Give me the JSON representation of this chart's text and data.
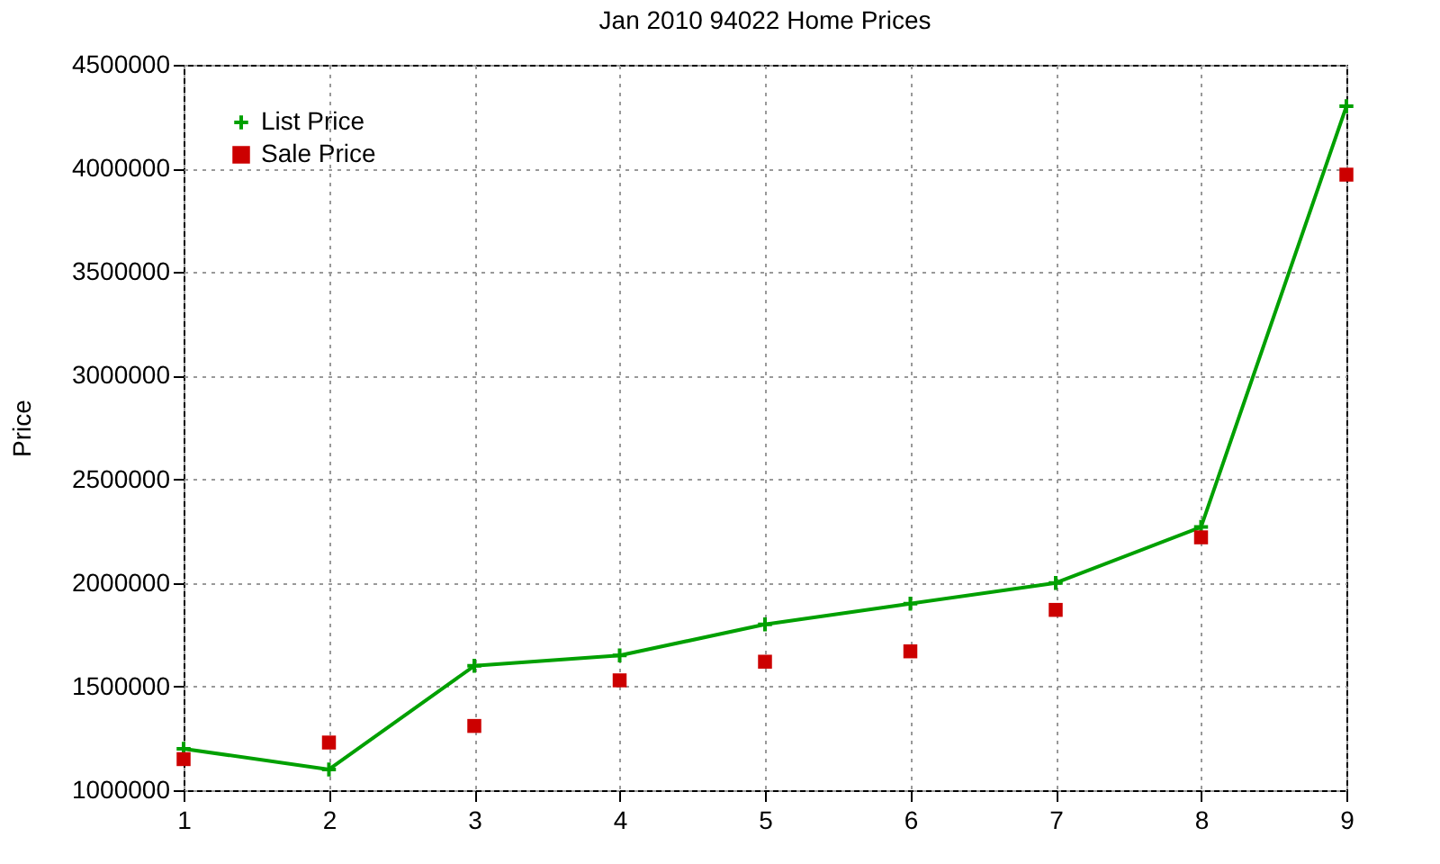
{
  "chart_data": {
    "type": "line",
    "title": "Jan 2010 94022 Home Prices",
    "ylabel": "Price",
    "x": [
      1,
      2,
      3,
      4,
      5,
      6,
      7,
      8,
      9
    ],
    "series": [
      {
        "name": "List Price",
        "color": "#00a000",
        "marker": "cross",
        "values": [
          1200000,
          1100000,
          1600000,
          1650000,
          1800000,
          1900000,
          2000000,
          2270000,
          4300000
        ]
      },
      {
        "name": "Sale Price",
        "color": "#cc0000",
        "type": "scatter",
        "marker": "square",
        "values": [
          1150000,
          1230000,
          1310000,
          1530000,
          1620000,
          1670000,
          1870000,
          2220000,
          3970000
        ]
      }
    ],
    "xlim": [
      1,
      9
    ],
    "xticks": [
      1,
      2,
      3,
      4,
      5,
      6,
      7,
      8,
      9
    ],
    "ylim": [
      1000000,
      4500000
    ],
    "yticks": [
      1000000,
      1500000,
      2000000,
      2500000,
      3000000,
      3500000,
      4000000,
      4500000
    ],
    "grid": true,
    "legend": "top left"
  }
}
